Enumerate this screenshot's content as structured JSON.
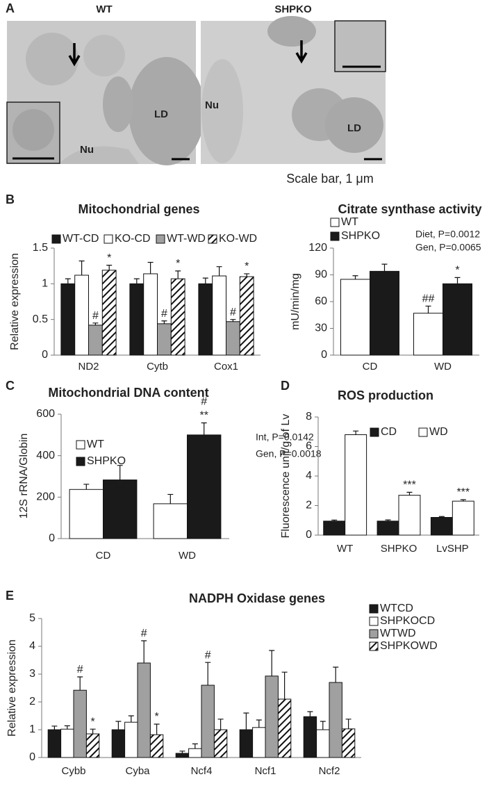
{
  "panels": [
    "A",
    "B",
    "C",
    "D",
    "E"
  ],
  "panel_a": {
    "titles": [
      "WT",
      "SHPKO"
    ],
    "labels": [
      "LD",
      "Nu",
      "Nu",
      "LD"
    ],
    "scale_bar": "Scale bar, 1 μm"
  },
  "chart_data": [
    {
      "type": "bar",
      "title": "Mitochondrial genes",
      "y_label": "Relative expression",
      "categories": [
        "ND2",
        "Cytb",
        "Cox1"
      ],
      "series": [
        {
          "name": "WT-CD",
          "color": "#1a1a1a",
          "values": [
            1,
            1,
            1
          ],
          "errors": [
            0.07,
            0.07,
            0.08
          ],
          "annotations": [
            null,
            null,
            null
          ]
        },
        {
          "name": "KO-CD",
          "color": "#ffffff",
          "values": [
            1.12,
            1.14,
            1.11
          ],
          "errors": [
            0.2,
            0.16,
            0.13
          ],
          "annotations": [
            null,
            null,
            null
          ]
        },
        {
          "name": "WT-WD",
          "color": "#a0a0a0",
          "values": [
            0.42,
            0.44,
            0.47
          ],
          "errors": [
            0.03,
            0.04,
            0.03
          ],
          "annotations": [
            [
              "#"
            ],
            [
              "#"
            ],
            [
              "#"
            ]
          ]
        },
        {
          "name": "KO-WD",
          "color": "#ffffff",
          "hatch": true,
          "values": [
            1.19,
            1.07,
            1.1
          ],
          "errors": [
            0.07,
            0.11,
            0.04
          ],
          "annotations": [
            [
              "*"
            ],
            [
              "*"
            ],
            [
              "*"
            ]
          ]
        }
      ],
      "ylim": [
        0,
        1.5
      ],
      "yticks": [
        0,
        0.5,
        1,
        1.5
      ]
    },
    {
      "type": "bar",
      "title": "Citrate synthase activity",
      "y_label": "mU/min/mg",
      "categories": [
        "CD",
        "WD"
      ],
      "series": [
        {
          "name": "WT",
          "color": "#ffffff",
          "values": [
            85,
            47
          ],
          "errors": [
            4,
            8
          ],
          "annotations": [
            null,
            [
              "##"
            ]
          ]
        },
        {
          "name": "SHPKO",
          "color": "#1a1a1a",
          "values": [
            94,
            80
          ],
          "errors": [
            8,
            7
          ],
          "annotations": [
            null,
            [
              "*"
            ]
          ]
        }
      ],
      "stats": [
        "Diet, P=0.0012",
        "Gen, P=0.0065"
      ],
      "ylim": [
        0,
        120
      ],
      "yticks": [
        0,
        30,
        60,
        90,
        120
      ]
    },
    {
      "type": "bar",
      "title": "Mitochondrial DNA content",
      "y_label": "12S rRNA/Globin",
      "categories": [
        "CD",
        "WD"
      ],
      "series": [
        {
          "name": "WT",
          "color": "#ffffff",
          "values": [
            237,
            168
          ],
          "errors": [
            25,
            45
          ],
          "annotations": [
            null,
            null
          ]
        },
        {
          "name": "SHPKO",
          "color": "#1a1a1a",
          "values": [
            283,
            500
          ],
          "errors": [
            70,
            58
          ],
          "annotations": [
            null,
            [
              "**",
              "#"
            ]
          ]
        }
      ],
      "stats": [
        "Int, P=0.0142",
        "Gen, P=0.0018"
      ],
      "ylim": [
        0,
        600
      ],
      "yticks": [
        0,
        200,
        400,
        600
      ]
    },
    {
      "type": "bar",
      "title": "ROS production",
      "y_label": "Fluorescence unit/g of Lv",
      "categories": [
        "WT",
        "SHPKO",
        "LvSHP"
      ],
      "series": [
        {
          "name": "CD",
          "color": "#1a1a1a",
          "values": [
            0.95,
            0.95,
            1.2
          ],
          "errors": [
            0.07,
            0.08,
            0.06
          ],
          "annotations": [
            null,
            null,
            null
          ]
        },
        {
          "name": "WD",
          "color": "#ffffff",
          "values": [
            6.8,
            2.7,
            2.3
          ],
          "errors": [
            0.25,
            0.2,
            0.1
          ],
          "annotations": [
            null,
            [
              "***"
            ],
            [
              "***"
            ]
          ]
        }
      ],
      "ylim": [
        0,
        8
      ],
      "yticks": [
        0,
        2,
        4,
        6,
        8
      ]
    },
    {
      "type": "bar",
      "title": "NADPH Oxidase genes",
      "y_label": "Relative expression",
      "categories": [
        "Cybb",
        "Cyba",
        "Ncf4",
        "Ncf1",
        "Ncf2"
      ],
      "series": [
        {
          "name": "WTCD",
          "color": "#1a1a1a",
          "values": [
            1,
            1,
            0.15,
            1,
            1.47
          ],
          "errors": [
            0.13,
            0.3,
            0.08,
            0.6,
            0.18
          ],
          "annotations": [
            null,
            null,
            null,
            null,
            null
          ]
        },
        {
          "name": "SHPKOCD",
          "color": "#ffffff",
          "values": [
            1.02,
            1.27,
            0.32,
            1.08,
            1.0
          ],
          "errors": [
            0.12,
            0.23,
            0.17,
            0.27,
            0.3
          ],
          "annotations": [
            null,
            null,
            null,
            null,
            null
          ]
        },
        {
          "name": "WTWD",
          "color": "#a0a0a0",
          "values": [
            2.42,
            3.4,
            2.6,
            2.93,
            2.7
          ],
          "errors": [
            0.48,
            0.8,
            0.82,
            0.92,
            0.55
          ],
          "annotations": [
            [
              "#"
            ],
            [
              "#"
            ],
            [
              "#"
            ],
            null,
            null
          ]
        },
        {
          "name": "SHPKOWD",
          "color": "#ffffff",
          "hatch": true,
          "values": [
            0.85,
            0.82,
            1.0,
            2.1,
            1.03
          ],
          "errors": [
            0.17,
            0.38,
            0.38,
            0.97,
            0.35
          ],
          "annotations": [
            [
              "*"
            ],
            [
              "*"
            ],
            null,
            null,
            null
          ]
        }
      ],
      "ylim": [
        0,
        5
      ],
      "yticks": [
        0,
        1,
        2,
        3,
        4,
        5
      ]
    }
  ]
}
